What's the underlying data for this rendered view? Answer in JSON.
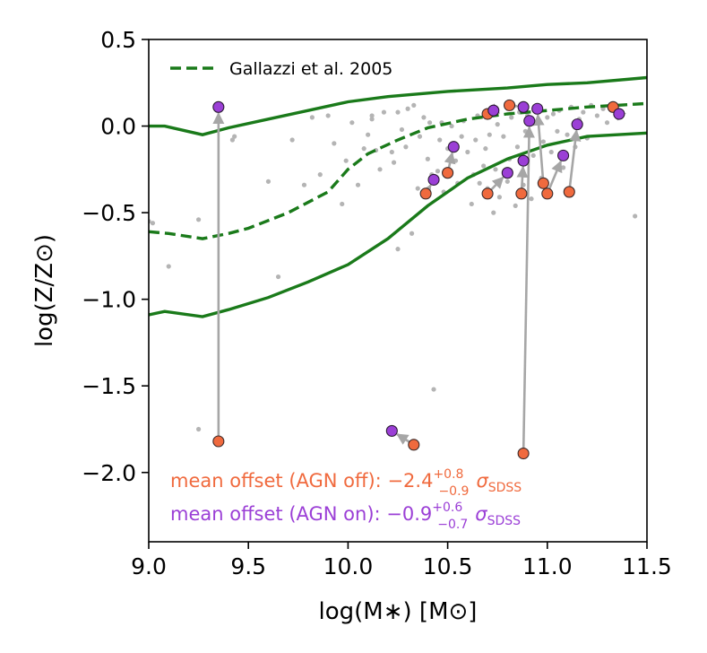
{
  "chart_data": {
    "type": "scatter",
    "title": "",
    "xlabel": "log(M∗) [M⊙]",
    "ylabel": "log(Z/Z⊙)",
    "xlim": [
      9.0,
      11.5
    ],
    "ylim": [
      -2.4,
      0.5
    ],
    "xticks": [
      9.0,
      9.5,
      10.0,
      10.5,
      11.0,
      11.5
    ],
    "xtick_labels": [
      "9.0",
      "9.5",
      "10.0",
      "10.5",
      "11.0",
      "11.5"
    ],
    "yticks": [
      0.5,
      0.0,
      -0.5,
      -1.0,
      -1.5,
      -2.0
    ],
    "ytick_labels": [
      "0.5",
      "0.0",
      "−0.5",
      "−1.0",
      "−1.5",
      "−2.0"
    ],
    "legend": {
      "label": "Gallazzi et al. 2005",
      "location": "top-left"
    },
    "colors": {
      "gallazzi": "#1a7a1a",
      "agn_off": "#f06a3e",
      "agn_on": "#9b3fd6",
      "arrow": "#a6a6a6",
      "sdss": "#b4b4b4"
    },
    "gallazzi_median": {
      "x": [
        9.0,
        9.1,
        9.27,
        9.4,
        9.5,
        9.7,
        9.9,
        10.0,
        10.1,
        10.25,
        10.4,
        10.6,
        10.8,
        11.0,
        11.2,
        11.5
      ],
      "y": [
        -0.61,
        -0.62,
        -0.65,
        -0.62,
        -0.59,
        -0.5,
        -0.38,
        -0.25,
        -0.16,
        -0.08,
        -0.01,
        0.04,
        0.07,
        0.09,
        0.11,
        0.13
      ]
    },
    "gallazzi_upper": {
      "x": [
        9.0,
        9.08,
        9.27,
        9.4,
        9.6,
        9.8,
        10.0,
        10.2,
        10.5,
        10.8,
        11.0,
        11.2,
        11.5
      ],
      "y": [
        0.0,
        0.0,
        -0.05,
        -0.01,
        0.04,
        0.09,
        0.14,
        0.17,
        0.2,
        0.22,
        0.24,
        0.25,
        0.28
      ]
    },
    "gallazzi_lower": {
      "x": [
        9.0,
        9.08,
        9.27,
        9.4,
        9.6,
        9.8,
        10.0,
        10.2,
        10.4,
        10.6,
        10.8,
        11.0,
        11.2,
        11.5
      ],
      "y": [
        -1.09,
        -1.07,
        -1.1,
        -1.06,
        -0.99,
        -0.9,
        -0.8,
        -0.65,
        -0.46,
        -0.3,
        -0.19,
        -0.11,
        -0.06,
        -0.04
      ]
    },
    "sdss_points": [
      [
        9.0,
        -0.55
      ],
      [
        9.02,
        -0.56
      ],
      [
        9.1,
        -0.81
      ],
      [
        9.25,
        -0.54
      ],
      [
        9.25,
        -1.75
      ],
      [
        9.42,
        -0.08
      ],
      [
        9.43,
        -0.06
      ],
      [
        9.6,
        -0.32
      ],
      [
        9.65,
        -0.87
      ],
      [
        9.72,
        -0.08
      ],
      [
        9.78,
        -0.34
      ],
      [
        9.82,
        0.05
      ],
      [
        9.86,
        -0.28
      ],
      [
        9.9,
        0.06
      ],
      [
        9.93,
        -0.1
      ],
      [
        9.97,
        -0.45
      ],
      [
        9.99,
        -0.2
      ],
      [
        10.02,
        0.02
      ],
      [
        10.05,
        -0.34
      ],
      [
        10.08,
        -0.13
      ],
      [
        10.1,
        -0.05
      ],
      [
        10.12,
        0.04
      ],
      [
        10.12,
        0.06
      ],
      [
        10.14,
        -0.14
      ],
      [
        10.16,
        -0.25
      ],
      [
        10.18,
        0.08
      ],
      [
        10.22,
        -0.15
      ],
      [
        10.23,
        -0.21
      ],
      [
        10.25,
        0.08
      ],
      [
        10.25,
        -0.71
      ],
      [
        10.27,
        -0.02
      ],
      [
        10.29,
        -0.12
      ],
      [
        10.3,
        0.1
      ],
      [
        10.32,
        -0.62
      ],
      [
        10.33,
        0.12
      ],
      [
        10.35,
        -0.36
      ],
      [
        10.36,
        -0.06
      ],
      [
        10.38,
        0.05
      ],
      [
        10.4,
        -0.19
      ],
      [
        10.41,
        0.02
      ],
      [
        10.42,
        -0.28
      ],
      [
        10.43,
        -1.52
      ],
      [
        10.45,
        -0.26
      ],
      [
        10.46,
        -0.08
      ],
      [
        10.47,
        0.02
      ],
      [
        10.48,
        -0.38
      ],
      [
        10.5,
        -0.13
      ],
      [
        10.52,
        0.0
      ],
      [
        10.54,
        -0.2
      ],
      [
        10.55,
        -0.33
      ],
      [
        10.57,
        -0.06
      ],
      [
        10.58,
        0.03
      ],
      [
        10.6,
        -0.15
      ],
      [
        10.62,
        -0.45
      ],
      [
        10.63,
        -0.28
      ],
      [
        10.64,
        -0.08
      ],
      [
        10.65,
        0.06
      ],
      [
        10.66,
        -0.33
      ],
      [
        10.68,
        -0.23
      ],
      [
        10.69,
        -0.13
      ],
      [
        10.7,
        -0.36
      ],
      [
        10.71,
        -0.05
      ],
      [
        10.72,
        0.07
      ],
      [
        10.73,
        -0.5
      ],
      [
        10.74,
        -0.25
      ],
      [
        10.75,
        0.01
      ],
      [
        10.76,
        -0.41
      ],
      [
        10.78,
        -0.06
      ],
      [
        10.8,
        -0.32
      ],
      [
        10.81,
        -0.19
      ],
      [
        10.82,
        0.05
      ],
      [
        10.84,
        -0.46
      ],
      [
        10.85,
        -0.12
      ],
      [
        10.86,
        0.08
      ],
      [
        10.88,
        -0.34
      ],
      [
        10.89,
        -0.03
      ],
      [
        10.9,
        0.06
      ],
      [
        10.92,
        -0.42
      ],
      [
        10.93,
        -0.17
      ],
      [
        10.94,
        0.02
      ],
      [
        10.95,
        0.1
      ],
      [
        10.97,
        -0.3
      ],
      [
        10.98,
        -0.09
      ],
      [
        11.0,
        0.05
      ],
      [
        11.01,
        -0.38
      ],
      [
        11.02,
        -0.15
      ],
      [
        11.03,
        0.07
      ],
      [
        11.05,
        -0.03
      ],
      [
        11.06,
        0.09
      ],
      [
        11.08,
        -0.24
      ],
      [
        11.1,
        -0.05
      ],
      [
        11.12,
        0.11
      ],
      [
        11.14,
        -0.12
      ],
      [
        11.16,
        0.04
      ],
      [
        11.18,
        0.08
      ],
      [
        11.2,
        -0.07
      ],
      [
        11.22,
        0.12
      ],
      [
        11.25,
        0.06
      ],
      [
        11.28,
        0.1
      ],
      [
        11.3,
        0.02
      ],
      [
        11.33,
        0.11
      ],
      [
        11.36,
        0.09
      ],
      [
        11.44,
        -0.52
      ]
    ],
    "pairs": [
      {
        "off": [
          9.35,
          -1.82
        ],
        "on": [
          9.35,
          0.11
        ]
      },
      {
        "off": [
          10.33,
          -1.84
        ],
        "on": [
          10.22,
          -1.76
        ]
      },
      {
        "off": [
          10.39,
          -0.39
        ],
        "on": [
          10.43,
          -0.31
        ]
      },
      {
        "off": [
          10.5,
          -0.27
        ],
        "on": [
          10.53,
          -0.12
        ]
      },
      {
        "off": [
          10.7,
          0.07
        ],
        "on": [
          10.73,
          0.09
        ]
      },
      {
        "off": [
          10.7,
          -0.39
        ],
        "on": [
          10.8,
          -0.27
        ]
      },
      {
        "off": [
          10.81,
          0.12
        ],
        "on": [
          10.88,
          0.11
        ]
      },
      {
        "off": [
          10.87,
          -0.39
        ],
        "on": [
          10.88,
          -0.2
        ]
      },
      {
        "off": [
          10.88,
          -1.89
        ],
        "on": [
          10.91,
          0.03
        ]
      },
      {
        "off": [
          10.98,
          -0.33
        ],
        "on": [
          10.95,
          0.1
        ]
      },
      {
        "off": [
          11.0,
          -0.39
        ],
        "on": [
          11.08,
          -0.17
        ]
      },
      {
        "off": [
          11.11,
          -0.38
        ],
        "on": [
          11.15,
          0.01
        ]
      },
      {
        "off": [
          11.33,
          0.11
        ],
        "on": [
          11.36,
          0.07
        ]
      }
    ],
    "annotations": {
      "agn_off": {
        "prefix": "mean offset (AGN off): ",
        "value": "−2.4",
        "sup": "+0.8",
        "sub": "−0.9",
        "sigma": "σ",
        "sigma_sub": "SDSS"
      },
      "agn_on": {
        "prefix": "mean offset (AGN on): ",
        "value": "−0.9",
        "sup": "+0.6",
        "sub": "−0.7",
        "sigma": "σ",
        "sigma_sub": "SDSS"
      }
    }
  }
}
